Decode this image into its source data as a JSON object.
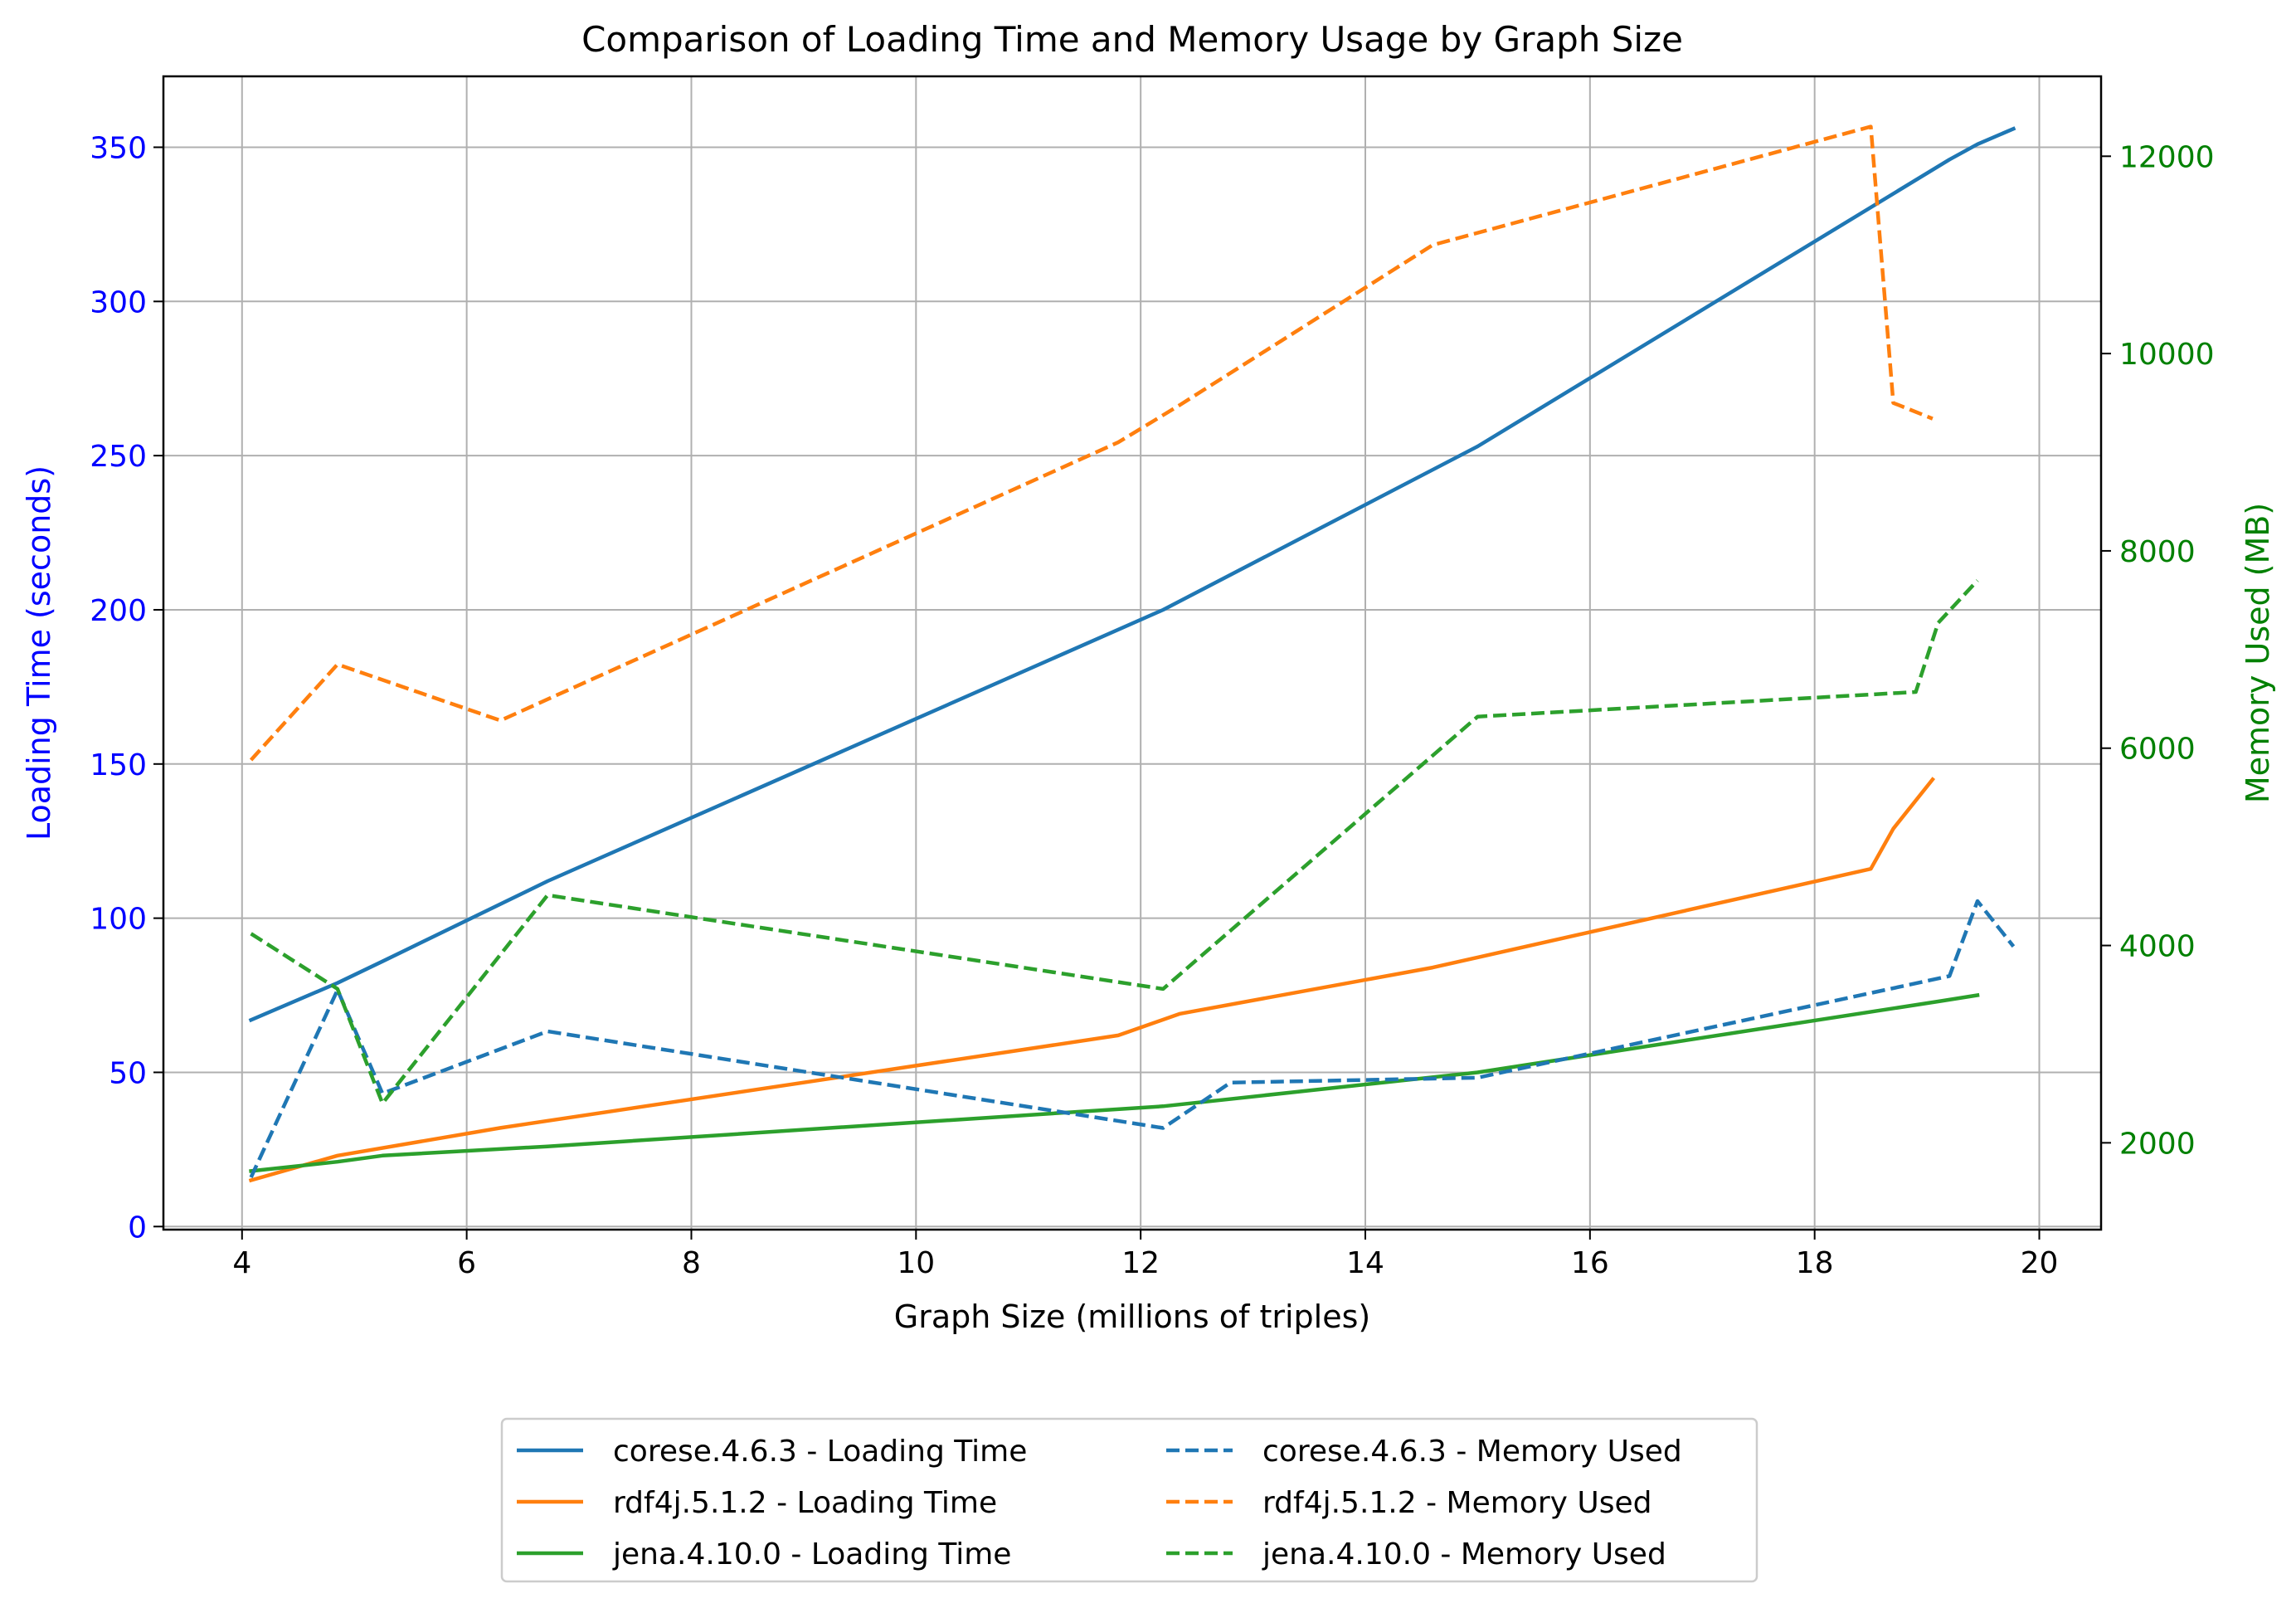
{
  "chart_data": {
    "type": "line",
    "title": "Comparison of Loading Time and Memory Usage by Graph Size",
    "xlabel": "Graph Size (millions of triples)",
    "ylabel": "Loading Time (seconds)",
    "y2label": "Memory Used (MB)",
    "xlim": [
      3.3,
      20.55
    ],
    "ylim": [
      -1,
      373
    ],
    "y2lim": [
      1120,
      12810
    ],
    "xticks": [
      4,
      6,
      8,
      10,
      12,
      14,
      16,
      18,
      20
    ],
    "yticks": [
      0,
      50,
      100,
      150,
      200,
      250,
      300,
      350
    ],
    "y2ticks": [
      2000,
      4000,
      6000,
      8000,
      10000,
      12000
    ],
    "grid": true,
    "legend_placement": "bottom-center",
    "colors": {
      "left_axis": "#0000ff",
      "right_axis": "#008000",
      "corese": "#1f77b4",
      "rdf4j": "#ff7f0e",
      "jena": "#2ca02c"
    },
    "series": [
      {
        "name": "corese.4.6.3 - Loading Time",
        "axis": "left",
        "style": "solid",
        "color": "#1f77b4",
        "x": [
          4.08,
          4.85,
          5.25,
          6.72,
          12.2,
          15.0,
          19.2,
          19.45,
          19.77
        ],
        "y": [
          67,
          79,
          86,
          112,
          200,
          253,
          346,
          351,
          356
        ]
      },
      {
        "name": "rdf4j.5.1.2 - Loading Time",
        "axis": "left",
        "style": "solid",
        "color": "#ff7f0e",
        "x": [
          4.08,
          4.85,
          6.3,
          11.8,
          12.35,
          14.6,
          18.5,
          18.7,
          19.05
        ],
        "y": [
          15,
          23,
          32,
          62,
          69,
          84,
          116,
          129,
          145
        ]
      },
      {
        "name": "jena.4.10.0 - Loading Time",
        "axis": "left",
        "style": "solid",
        "color": "#2ca02c",
        "x": [
          4.08,
          4.85,
          5.25,
          6.72,
          12.2,
          15.0,
          19.1,
          19.45
        ],
        "y": [
          18,
          21,
          23,
          26,
          39,
          50,
          73,
          75
        ]
      },
      {
        "name": "corese.4.6.3 - Memory Used",
        "axis": "right",
        "style": "dashed",
        "color": "#1f77b4",
        "x": [
          4.08,
          4.85,
          5.25,
          6.72,
          12.2,
          12.8,
          15.0,
          19.2,
          19.45,
          19.77
        ],
        "y": [
          1650,
          3550,
          2500,
          3130,
          2150,
          2610,
          2660,
          3690,
          4450,
          3990
        ]
      },
      {
        "name": "rdf4j.5.1.2 - Memory Used",
        "axis": "right",
        "style": "dashed",
        "color": "#ff7f0e",
        "x": [
          4.08,
          4.85,
          6.3,
          11.8,
          12.35,
          14.6,
          18.5,
          18.7,
          19.05
        ],
        "y": [
          5880,
          6850,
          6280,
          9100,
          9480,
          11100,
          12300,
          9500,
          9340
        ]
      },
      {
        "name": "jena.4.10.0 - Memory Used",
        "axis": "right",
        "style": "dashed",
        "color": "#2ca02c",
        "x": [
          4.08,
          4.85,
          5.25,
          6.72,
          12.2,
          15.0,
          18.9,
          19.1,
          19.45
        ],
        "y": [
          4120,
          3560,
          2400,
          4510,
          3560,
          6320,
          6570,
          7270,
          7700
        ]
      }
    ]
  }
}
